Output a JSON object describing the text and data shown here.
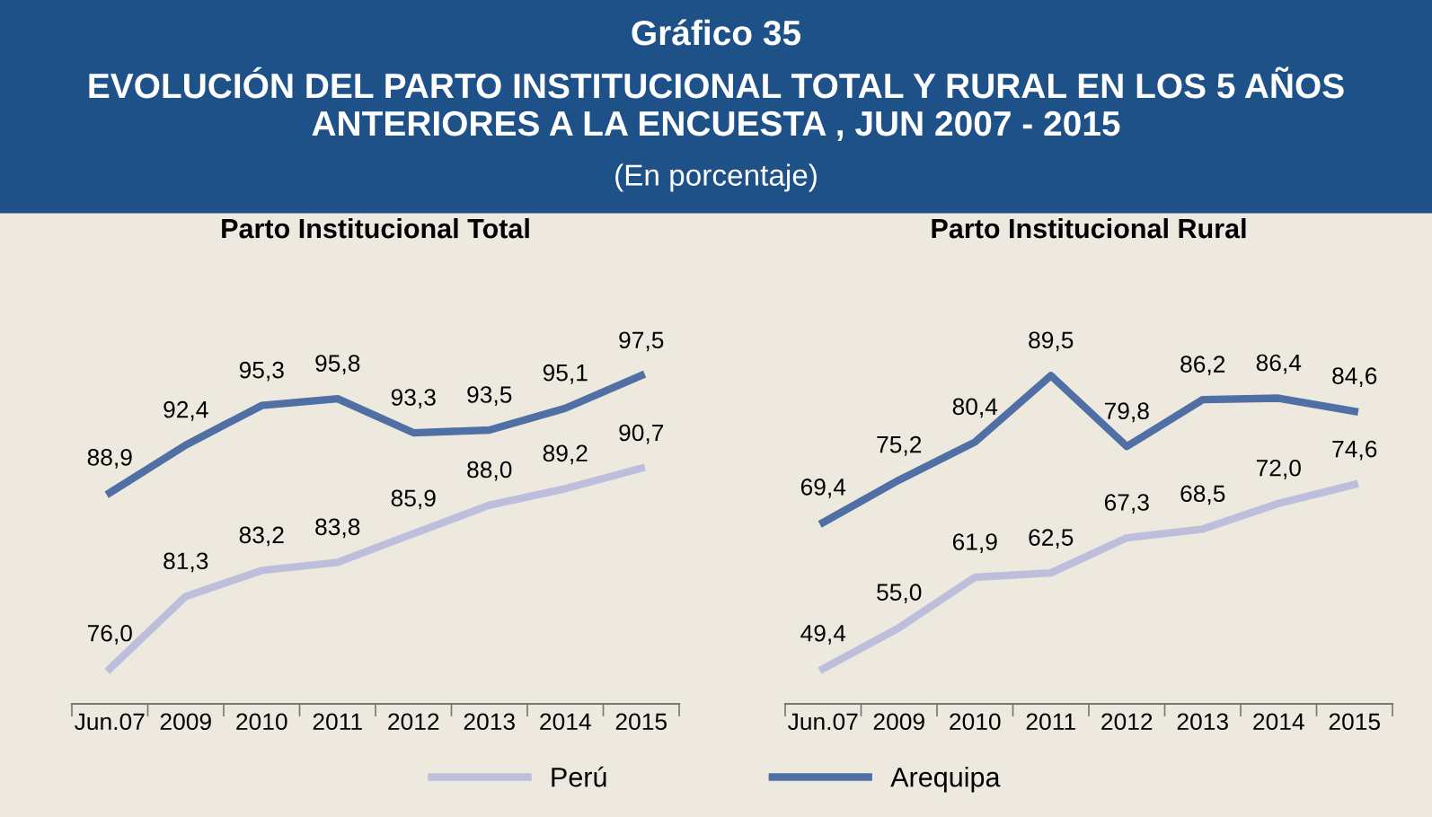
{
  "chart_data": [
    {
      "type": "line",
      "title": "Parto Institucional Total",
      "annotations": [
        "Gráfico 35",
        "EVOLUCIÓN DEL PARTO INSTITUCIONAL TOTAL Y RURAL EN LOS 5 AÑOS ANTERIORES A LA ENCUESTA , JUN 2007 - 2015",
        "(En porcentaje)"
      ],
      "categories": [
        "Jun.07",
        "2009",
        "2010",
        "2011",
        "2012",
        "2013",
        "2014",
        "2015"
      ],
      "series": [
        {
          "name": "Perú",
          "color": "#bcbedc",
          "values": [
            76.0,
            81.3,
            83.2,
            83.8,
            85.9,
            88.0,
            89.2,
            90.7
          ],
          "value_labels": [
            "76,0",
            "81,3",
            "83,2",
            "83,8",
            "85,9",
            "88,0",
            "89,2",
            "90,7"
          ]
        },
        {
          "name": "Arequipa",
          "color": "#4f6fa5",
          "values": [
            88.9,
            92.4,
            95.3,
            95.8,
            93.3,
            93.5,
            95.1,
            97.5
          ],
          "value_labels": [
            "88,9",
            "92,4",
            "95,3",
            "95,8",
            "93,3",
            "93,5",
            "95,1",
            "97,5"
          ]
        }
      ],
      "tick_labels": "x",
      "legend": "bottom",
      "line_style": "solid",
      "marker": "none"
    },
    {
      "type": "line",
      "title": "Parto Institucional Rural",
      "categories": [
        "Jun.07",
        "2009",
        "2010",
        "2011",
        "2012",
        "2013",
        "2014",
        "2015"
      ],
      "series": [
        {
          "color": "#bcbedc",
          "values": [
            49.4,
            55.0,
            61.9,
            62.5,
            67.3,
            68.5,
            72.0,
            74.6
          ],
          "value_labels": [
            "49,4",
            "55,0",
            "61,9",
            "62,5",
            "67,3",
            "68,5",
            "72,0",
            "74,6"
          ]
        },
        {
          "color": "#4f6fa5",
          "values": [
            69.4,
            75.2,
            80.4,
            89.5,
            79.8,
            86.2,
            86.4,
            84.6
          ],
          "value_labels": [
            "69,4",
            "75,2",
            "80,4",
            "89,5",
            "79,8",
            "86,2",
            "86,4",
            "84,6"
          ]
        }
      ],
      "tick_labels": "x",
      "line_style": "solid",
      "marker": "none"
    }
  ]
}
